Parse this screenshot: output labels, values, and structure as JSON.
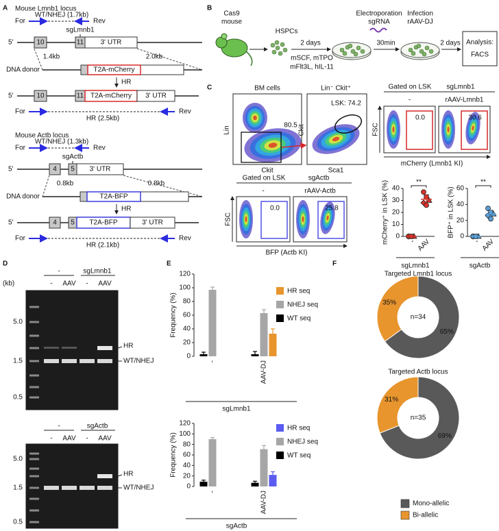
{
  "panels": {
    "a": "A",
    "b": "B",
    "c": "C",
    "d": "D",
    "e": "E",
    "f": "F"
  },
  "loci": [
    {
      "title": "Mouse Lmnb1 locus",
      "wt_product": "WT/NHEJ (1.7kb)",
      "forward": "For",
      "reverse": "Rev",
      "guide": "sgLmnb1",
      "five_prime": "5'",
      "exon_a": "10",
      "exon_b": "11",
      "utr": "3' UTR",
      "left_arm": "1.4kb",
      "right_arm": "2.0kb",
      "donor": "DNA donor",
      "cassette": "T2A-mCherry",
      "hr": "HR",
      "hr_product": "HR (2.5kb)"
    },
    {
      "title": "Mouse Actb locus",
      "wt_product": "WT/NHEJ (1.3kb)",
      "forward": "For",
      "reverse": "Rev",
      "guide": "sgActb",
      "five_prime": "5'",
      "exon_a": "4",
      "exon_b": "5",
      "utr": "3' UTR",
      "left_arm": "0.8kb",
      "right_arm": "0.8kb",
      "donor": "DNA donor",
      "cassette": "T2A-BFP",
      "hr": "HR",
      "hr_product": "HR (2.1kb)"
    }
  ],
  "workflow": {
    "mouse": [
      "Cas9",
      "mouse"
    ],
    "cells": "HSPCs",
    "culture_time": "2 days",
    "cytokines": [
      "mSCF, mTPO",
      "mFlt3L, hIL-11"
    ],
    "electroporation": [
      "Electroporation",
      "sgRNA"
    ],
    "wait": "30min",
    "infection": [
      "Infection",
      "rAAV-DJ"
    ],
    "expansion": "2 days",
    "analysis": [
      "Analysis:",
      "FACS"
    ]
  },
  "facs": {
    "parent": {
      "title": "BM cells",
      "gate": "80.5",
      "y": "Lin",
      "x": "Ckit"
    },
    "lk": {
      "title": "Lin⁻ Ckit⁺",
      "gate": "LSK: 74.2",
      "y": "Ckit",
      "x": "Sca1"
    },
    "groups": [
      {
        "gated": "Gated on LSK",
        "guide": "sgLmnb1",
        "conditions": [
          "-",
          "rAAV-Lmnb1"
        ],
        "gates": [
          "0.0",
          "30.6"
        ],
        "y": "FSC",
        "x": "mCherry (Lmnb1 KI)"
      },
      {
        "gated": "Gated on LSK",
        "guide": "sgActb",
        "conditions": [
          "-",
          "rAAV-Actb"
        ],
        "gates": [
          "0.0",
          "25.8"
        ],
        "y": "FSC",
        "x": "BFP (Actb KI)"
      }
    ]
  },
  "gels": [
    {
      "unit": "(kb)",
      "headers": [
        "-",
        "sgLmnb1"
      ],
      "lanes": [
        "-",
        "AAV",
        "-",
        "AAV"
      ],
      "markers": [
        "5.0",
        "1.5",
        "0.5"
      ],
      "bands": [
        "HR",
        "WT/NHEJ"
      ]
    },
    {
      "headers": [
        "-",
        "sgActb"
      ],
      "lanes": [
        "-",
        "AAV",
        "-",
        "AAV"
      ],
      "markers": [
        "5.0",
        "1.5",
        "0.5"
      ],
      "bands": [
        "HR",
        "WT/NHEJ"
      ]
    }
  ],
  "chart_data": [
    {
      "type": "strip",
      "ylabel": "mCherry⁺ in LSK (%)",
      "categories": [
        "-",
        "AAV"
      ],
      "values": [
        [
          0,
          0,
          0,
          0,
          0
        ],
        [
          37,
          33,
          30,
          28,
          26
        ]
      ],
      "means": [
        0,
        31
      ],
      "errors": [
        0,
        4
      ],
      "color": "#d6332a",
      "ylim": [
        0,
        40
      ],
      "yticks": [
        0,
        10,
        20,
        30,
        40
      ],
      "significance": "**",
      "group": "sgLmnb1"
    },
    {
      "type": "strip",
      "ylabel": "BFP⁺ in LSK (%)",
      "categories": [
        "-",
        "AAV"
      ],
      "values": [
        [
          0,
          0,
          0,
          0,
          0
        ],
        [
          35,
          30,
          28,
          26,
          22
        ]
      ],
      "means": [
        0,
        28
      ],
      "errors": [
        0,
        5
      ],
      "color": "#5aa0d8",
      "ylim": [
        0,
        60
      ],
      "yticks": [
        0,
        20,
        40,
        60
      ],
      "significance": "**",
      "group": "sgActb"
    },
    {
      "type": "bar",
      "ylabel": "Frequency (%)",
      "categories": [
        "-",
        "AAV-DJ"
      ],
      "series": [
        {
          "name": "HR seq",
          "color": "#e8952e",
          "values": [
            null,
            33
          ],
          "errors": [
            null,
            7
          ]
        },
        {
          "name": "NHEJ seq",
          "color": "#a6a6a6",
          "values": [
            97,
            63
          ],
          "errors": [
            4,
            5
          ]
        },
        {
          "name": "WT seq",
          "color": "#000000",
          "values": [
            3,
            3
          ],
          "errors": [
            3,
            4
          ]
        }
      ],
      "ylim": [
        0,
        120
      ],
      "yticks": [
        0,
        20,
        40,
        60,
        80,
        100,
        120
      ],
      "group": "sgLmnb1"
    },
    {
      "type": "bar",
      "ylabel": "Frequency (%)",
      "categories": [
        "-",
        "AAV-DJ"
      ],
      "series": [
        {
          "name": "HR seq",
          "color": "#5b5bf2",
          "values": [
            null,
            22
          ],
          "errors": [
            null,
            6
          ]
        },
        {
          "name": "NHEJ seq",
          "color": "#a6a6a6",
          "values": [
            90,
            71
          ],
          "errors": [
            3,
            7
          ]
        },
        {
          "name": "WT seq",
          "color": "#000000",
          "values": [
            9,
            7
          ],
          "errors": [
            3,
            3
          ]
        }
      ],
      "ylim": [
        0,
        120
      ],
      "yticks": [
        0,
        20,
        40,
        60,
        80,
        100,
        120
      ],
      "group": "sgActb"
    },
    {
      "type": "donut",
      "title": "Targeted Lmnb1 locus",
      "center": "n=34",
      "values": [
        65,
        35
      ],
      "value_labels": [
        "65%",
        "35%"
      ],
      "colors": [
        "#595959",
        "#e8952e"
      ]
    },
    {
      "type": "donut",
      "title": "Targeted Actb locus",
      "center": "n=35",
      "categories": [
        "Mono-allelic",
        "Bi-allelic"
      ],
      "values": [
        69,
        31
      ],
      "value_labels": [
        "69%",
        "31%"
      ],
      "colors": [
        "#595959",
        "#e8952e"
      ]
    }
  ]
}
